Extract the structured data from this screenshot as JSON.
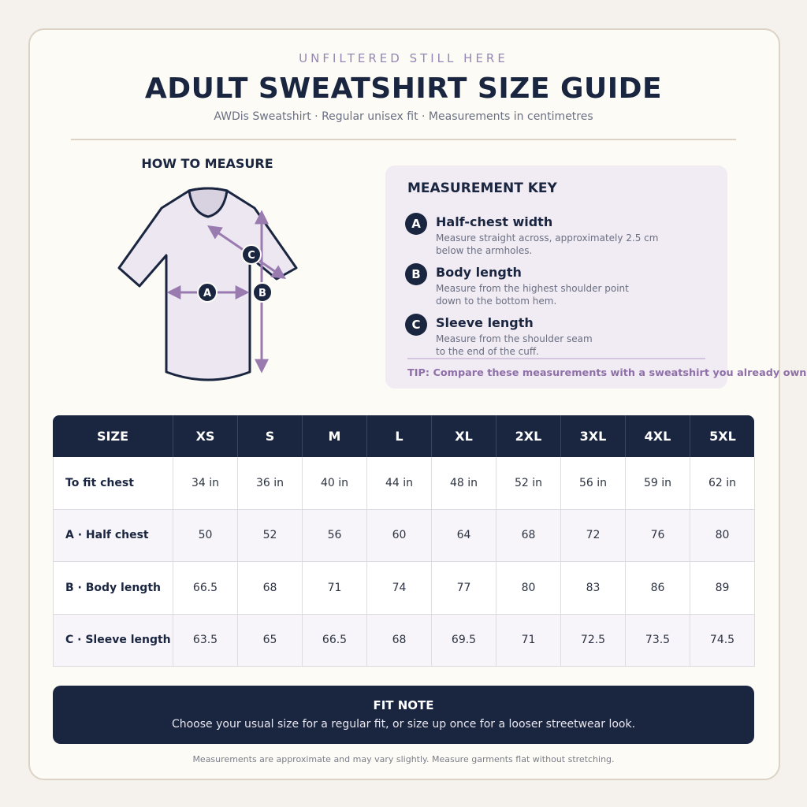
{
  "header": {
    "eyebrow": "UNFILTERED STILL HERE",
    "title": "ADULT SWEATSHIRT SIZE GUIDE",
    "subtitle": "AWDis Sweatshirt · Regular unisex fit · Measurements in centimetres"
  },
  "how_to_measure": {
    "title": "HOW TO MEASURE"
  },
  "key": {
    "title": "MEASUREMENT KEY",
    "items": [
      {
        "letter": "A",
        "title": "Half-chest width",
        "lines": [
          "Measure straight across, approximately 2.5 cm",
          "below the armholes."
        ]
      },
      {
        "letter": "B",
        "title": "Body length",
        "lines": [
          "Measure from the highest shoulder point",
          "down to the bottom hem."
        ]
      },
      {
        "letter": "C",
        "title": "Sleeve length",
        "lines": [
          "Measure from the shoulder seam",
          "to the end of the cuff."
        ]
      }
    ],
    "tip": "TIP: Compare these measurements with a sweatshirt you already own."
  },
  "table": {
    "header": [
      "SIZE",
      "XS",
      "S",
      "M",
      "L",
      "XL",
      "2XL",
      "3XL",
      "4XL",
      "5XL"
    ],
    "rows": [
      [
        "To fit chest",
        "34 in",
        "36 in",
        "40 in",
        "44 in",
        "48 in",
        "52 in",
        "56 in",
        "59 in",
        "62 in"
      ],
      [
        "A · Half chest",
        "50",
        "52",
        "56",
        "60",
        "64",
        "68",
        "72",
        "76",
        "80"
      ],
      [
        "B · Body length",
        "66.5",
        "68",
        "71",
        "74",
        "77",
        "80",
        "83",
        "86",
        "89"
      ],
      [
        "C · Sleeve length",
        "63.5",
        "65",
        "66.5",
        "68",
        "69.5",
        "71",
        "72.5",
        "73.5",
        "74.5"
      ]
    ]
  },
  "fit_note": {
    "title": "FIT NOTE",
    "text": "Choose your usual size for a regular fit, or size up once for a looser streetwear look."
  },
  "footer": "Measurements are approximate and may vary slightly. Measure garments flat without stretching."
}
